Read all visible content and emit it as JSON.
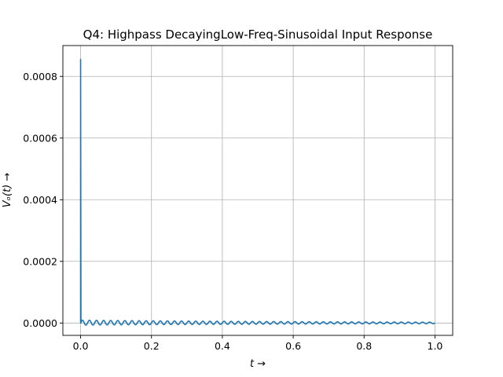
{
  "chart_data": {
    "type": "line",
    "title": "Q4: Highpass DecayingLow-Freq-Sinusoidal Input Response",
    "xlabel": "t →",
    "ylabel": "Vₒ(t) →",
    "xlim": [
      -0.05,
      1.05
    ],
    "ylim": [
      -4e-05,
      0.0009
    ],
    "xticks": [
      0.0,
      0.2,
      0.4,
      0.6,
      0.8,
      1.0
    ],
    "xtick_labels": [
      "0.0",
      "0.2",
      "0.4",
      "0.6",
      "0.8",
      "1.0"
    ],
    "yticks": [
      0.0,
      0.0002,
      0.0004,
      0.0006,
      0.0008
    ],
    "ytick_labels": [
      "0.0000",
      "0.0002",
      "0.0004",
      "0.0006",
      "0.0008"
    ],
    "grid": true,
    "color": "#1f77b4",
    "series": [
      {
        "peak": {
          "t": 0.0,
          "v": 0.000855
        },
        "oscillation": {
          "t_start": 0.003,
          "t_end": 1.0,
          "frequency_hz": 50,
          "initial_amplitude": 8e-06,
          "decay_rate": 1.2
        }
      }
    ]
  }
}
